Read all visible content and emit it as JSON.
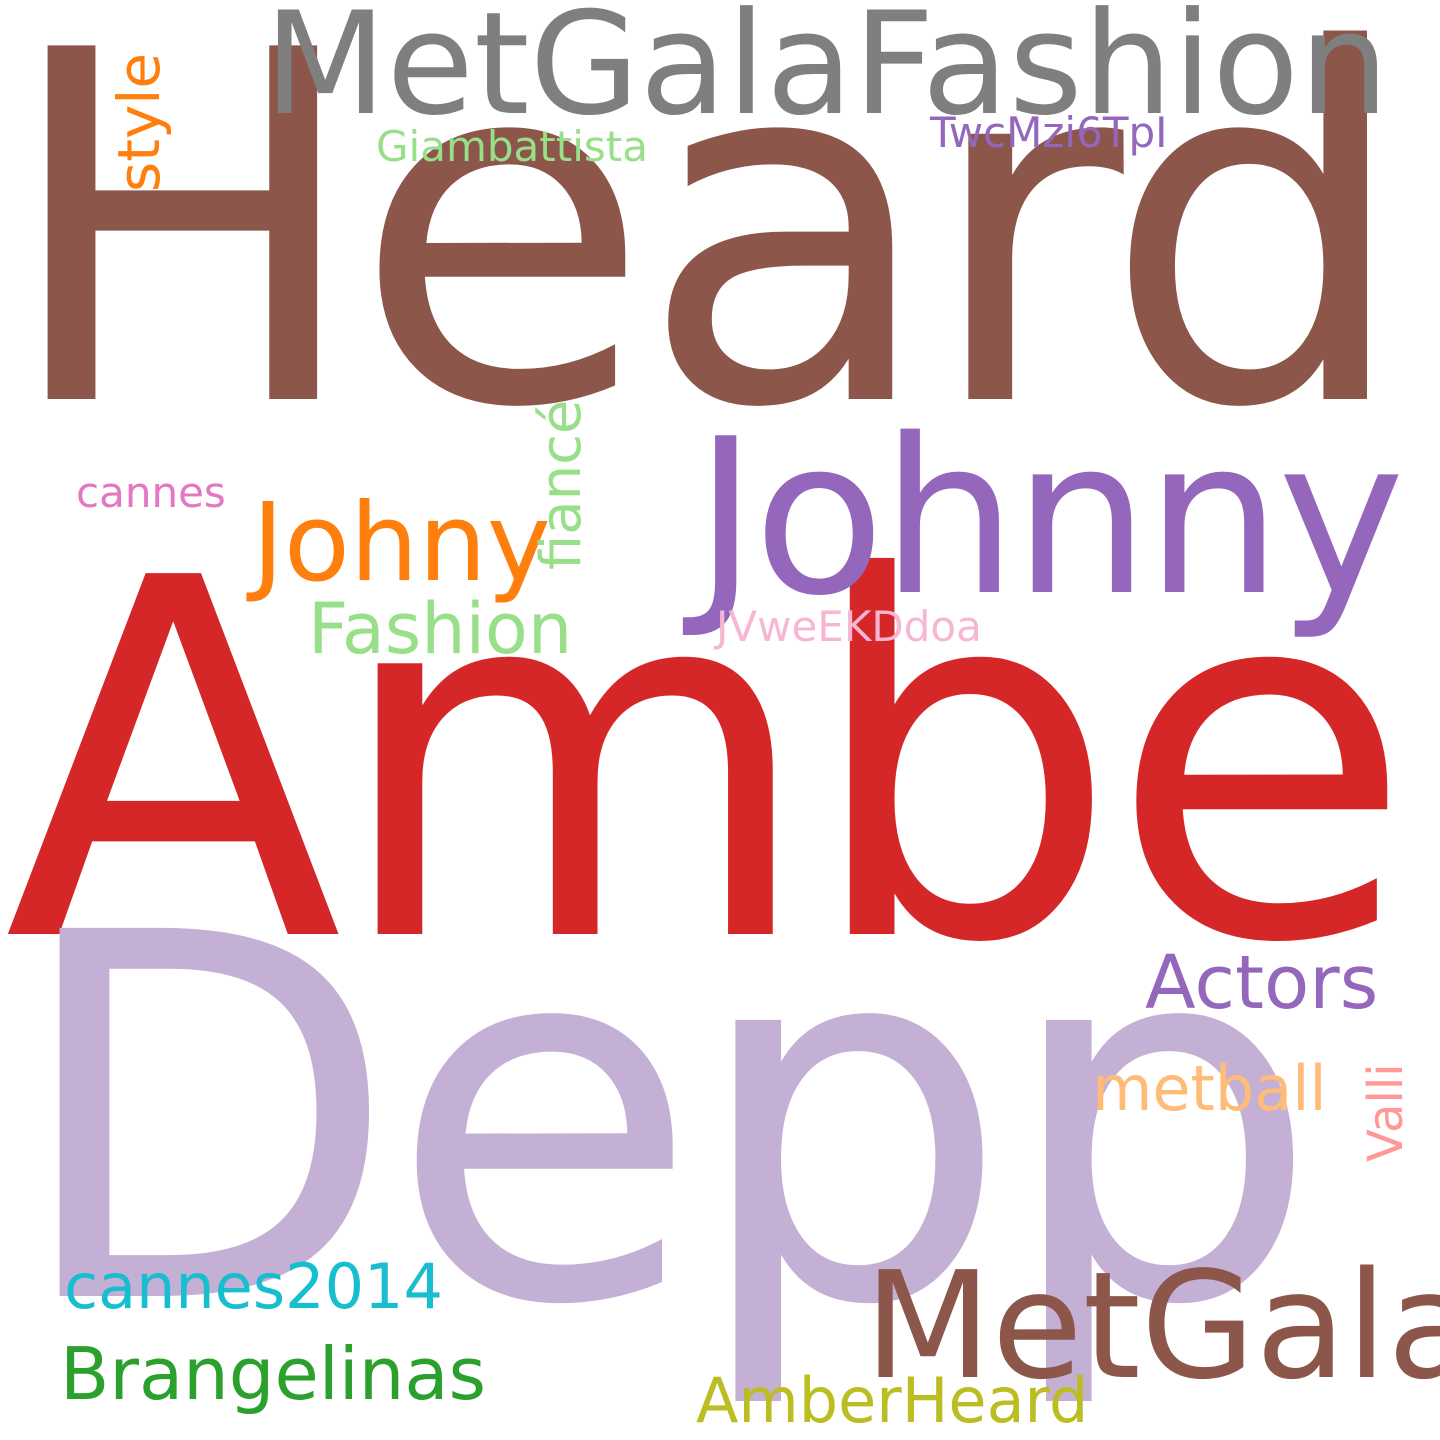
{
  "words": [
    {
      "text": "Heard",
      "color": "#8c564b"
    },
    {
      "text": "Amber",
      "color": "#d62728"
    },
    {
      "text": "Depp",
      "color": "#c5b0d5"
    },
    {
      "text": "Johnny",
      "color": "#9467bd"
    },
    {
      "text": "MetGalaFashion",
      "color": "#7f7f7f"
    },
    {
      "text": "MetGala",
      "color": "#8c564b"
    },
    {
      "text": "Johny",
      "color": "#ff7f0e"
    },
    {
      "text": "Actors",
      "color": "#9467bd"
    },
    {
      "text": "Fashion",
      "color": "#98df8a"
    },
    {
      "text": "Brangelinas",
      "color": "#2ca02c"
    },
    {
      "text": "cannes2014",
      "color": "#17becf"
    },
    {
      "text": "AmberHeard",
      "color": "#bcbd22"
    },
    {
      "text": "metball",
      "color": "#ffbb78"
    },
    {
      "text": "Giambattista",
      "color": "#98df8a"
    },
    {
      "text": "TwcMzi6TpI",
      "color": "#9467bd"
    },
    {
      "text": "cannes",
      "color": "#e377c2"
    },
    {
      "text": "JVweEKDdoa",
      "color": "#f7b6d2"
    },
    {
      "text": "style",
      "color": "#ff7f0e"
    },
    {
      "text": "fiancé",
      "color": "#98df8a"
    },
    {
      "text": "Valli",
      "color": "#ff9896"
    }
  ]
}
